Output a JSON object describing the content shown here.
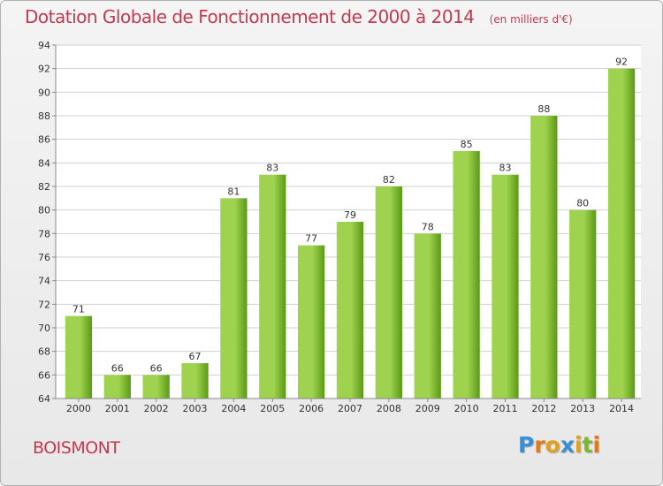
{
  "title": "Dotation Globale de Fonctionnement de 2000 à 2014",
  "unit_note": "(en milliers d'€)",
  "footer_name": "BOISMONT",
  "logo": {
    "letters": [
      "P",
      "r",
      "o",
      "x",
      "i",
      "t",
      "i"
    ],
    "colors": [
      "#3a8fd0",
      "#e07a1a",
      "#e0a020",
      "#3a8fd0",
      "#e0a020",
      "#7ab82a",
      "#e07a1a"
    ]
  },
  "colors": {
    "title": "#c23a50",
    "bar_light": "#9fd24e",
    "bar_dark": "#5a9a14",
    "grid": "#d0d0d0",
    "text": "#333333"
  },
  "chart_data": {
    "type": "bar",
    "categories": [
      "2000",
      "2001",
      "2002",
      "2003",
      "2004",
      "2005",
      "2006",
      "2007",
      "2008",
      "2009",
      "2010",
      "2011",
      "2012",
      "2013",
      "2014"
    ],
    "values": [
      71,
      66,
      66,
      67,
      81,
      83,
      77,
      79,
      82,
      78,
      85,
      83,
      88,
      80,
      92
    ],
    "ylim": [
      64,
      94
    ],
    "yticks": [
      64,
      66,
      68,
      70,
      72,
      74,
      76,
      78,
      80,
      82,
      84,
      86,
      88,
      90,
      92,
      94
    ],
    "grid": true,
    "data_labels": true
  }
}
